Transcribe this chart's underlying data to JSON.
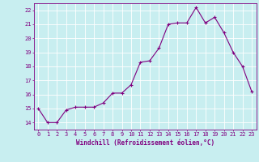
{
  "x": [
    0,
    1,
    2,
    3,
    4,
    5,
    6,
    7,
    8,
    9,
    10,
    11,
    12,
    13,
    14,
    15,
    16,
    17,
    18,
    19,
    20,
    21,
    22,
    23
  ],
  "y": [
    15.0,
    14.0,
    14.0,
    14.9,
    15.1,
    15.1,
    15.1,
    15.4,
    16.1,
    16.1,
    16.7,
    18.3,
    18.4,
    19.3,
    21.0,
    21.1,
    21.1,
    22.2,
    21.1,
    21.5,
    20.4,
    19.0,
    18.0,
    16.2
  ],
  "line_color": "#800080",
  "marker": "+",
  "marker_size": 3,
  "bg_color": "#c8eef0",
  "grid_color": "#ffffff",
  "xlabel": "Windchill (Refroidissement éolien,°C)",
  "xlabel_color": "#800080",
  "tick_color": "#800080",
  "ylim": [
    13.5,
    22.5
  ],
  "xlim": [
    -0.5,
    23.5
  ],
  "yticks": [
    14,
    15,
    16,
    17,
    18,
    19,
    20,
    21,
    22
  ],
  "xticks": [
    0,
    1,
    2,
    3,
    4,
    5,
    6,
    7,
    8,
    9,
    10,
    11,
    12,
    13,
    14,
    15,
    16,
    17,
    18,
    19,
    20,
    21,
    22,
    23
  ],
  "tick_fontsize": 5.0,
  "xlabel_fontsize": 5.5,
  "linewidth": 0.8,
  "markeredgewidth": 0.8
}
